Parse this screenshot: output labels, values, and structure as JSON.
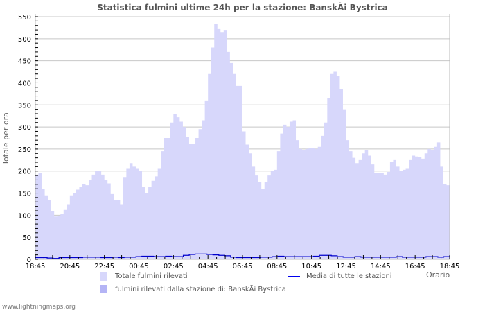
{
  "title": "Statistica fulmini ultime 24h per la stazione: BanskÃi Bystrica",
  "footer": "www.lightningmaps.org",
  "legend": {
    "total": "Totale fulmini rilevati",
    "station": "fulmini rilevati dalla stazione di: BanskÃi Bystrica",
    "average": "Media di tutte le stazioni"
  },
  "colors": {
    "total_fill": "#d7d7fb",
    "station_fill": "#b4b4f5",
    "average_line": "#0000cc",
    "grid": "#c8c8c8",
    "axis": "#bbbbbb"
  },
  "chart_data": {
    "type": "area",
    "title": "Statistica fulmini ultime 24h per la stazione: BanskÃi Bystrica",
    "xlabel": "Orario",
    "ylabel": "Totale per ora",
    "ylim": [
      0,
      550
    ],
    "yticks": [
      0,
      50,
      100,
      150,
      200,
      250,
      300,
      350,
      400,
      450,
      500,
      550
    ],
    "xticks": [
      "18:45",
      "20:45",
      "22:45",
      "00:45",
      "02:45",
      "04:45",
      "06:45",
      "08:45",
      "10:45",
      "12:45",
      "14:45",
      "16:45",
      "18:45"
    ],
    "grid": true,
    "legend_position": "bottom",
    "series": [
      {
        "name": "Totale fulmini rilevati",
        "kind": "area",
        "values": [
          192,
          195,
          160,
          145,
          135,
          110,
          97,
          98,
          103,
          112,
          125,
          145,
          150,
          158,
          165,
          170,
          168,
          180,
          192,
          200,
          200,
          192,
          180,
          172,
          148,
          135,
          135,
          125,
          185,
          205,
          218,
          210,
          205,
          200,
          165,
          150,
          165,
          178,
          188,
          205,
          245,
          275,
          275,
          310,
          330,
          322,
          312,
          300,
          278,
          262,
          262,
          275,
          295,
          315,
          360,
          420,
          480,
          533,
          522,
          515,
          520,
          470,
          445,
          420,
          393,
          393,
          290,
          260,
          240,
          210,
          190,
          175,
          160,
          175,
          190,
          200,
          203,
          245,
          285,
          305,
          300,
          312,
          315,
          270,
          250,
          248,
          250,
          252,
          252,
          250,
          255,
          280,
          310,
          365,
          420,
          425,
          415,
          385,
          340,
          270,
          245,
          230,
          218,
          225,
          240,
          248,
          235,
          215,
          195,
          196,
          195,
          192,
          198,
          220,
          225,
          210,
          200,
          203,
          205,
          225,
          235,
          233,
          232,
          228,
          240,
          250,
          248,
          255,
          265,
          210,
          170,
          168
        ]
      },
      {
        "name": "fulmini rilevati dalla stazione di: BanskÃi Bystrica",
        "kind": "area",
        "values": [
          0
        ]
      },
      {
        "name": "Media di tutte le stazioni",
        "kind": "line",
        "values": [
          4,
          4,
          3,
          2,
          4,
          4,
          4,
          4,
          5,
          5,
          5,
          4,
          4,
          5,
          4,
          5,
          5,
          6,
          7,
          7,
          6,
          6,
          7,
          6,
          6,
          9,
          11,
          12,
          12,
          11,
          10,
          9,
          8,
          5,
          4,
          4,
          4,
          4,
          5,
          5,
          6,
          7,
          6,
          6,
          6,
          6,
          6,
          7,
          9,
          9,
          8,
          6,
          5,
          5,
          6,
          5,
          5,
          5,
          5,
          5,
          5,
          6,
          5,
          5,
          5,
          5,
          6,
          6,
          5,
          6
        ]
      }
    ]
  }
}
